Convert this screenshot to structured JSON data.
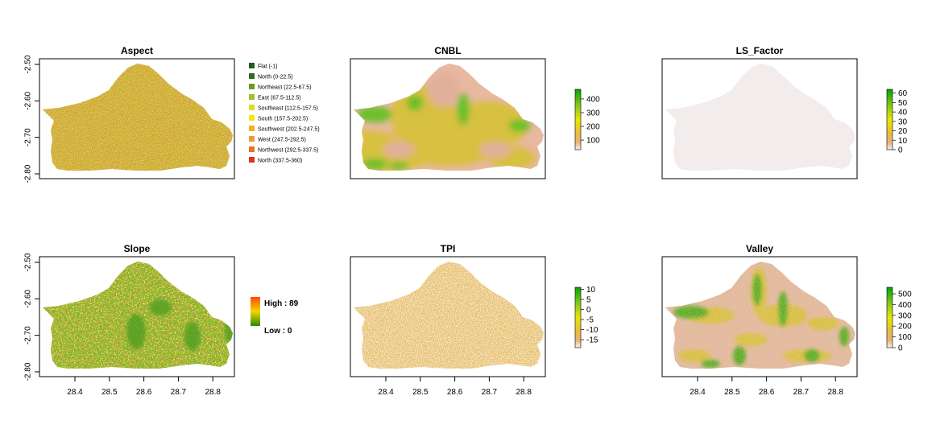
{
  "chart_data": [
    {
      "type": "heatmap",
      "title": "Aspect",
      "ylim": [
        -2.8,
        -2.5
      ],
      "yticks": [
        "-2.50",
        "-2.60",
        "-2.70",
        "-2.80"
      ],
      "legend": {
        "type": "categorical",
        "placement": "right",
        "items": [
          {
            "label": "Flat (-1)",
            "color": "#1b5e20"
          },
          {
            "label": "North (0-22.5)",
            "color": "#33691e"
          },
          {
            "label": "Northeast (22.5-67.5)",
            "color": "#6b9a1f"
          },
          {
            "label": "East (67.5-112.5)",
            "color": "#9fc22a"
          },
          {
            "label": "Southeast (112.5-157.5)",
            "color": "#d9e021"
          },
          {
            "label": "South (157.5-202.5)",
            "color": "#f5e50a"
          },
          {
            "label": "Southwest (202.5-247.5)",
            "color": "#f2b31b"
          },
          {
            "label": "West (247.5-292.5)",
            "color": "#ef9a2e"
          },
          {
            "label": "Northwest (292.5-337.5)",
            "color": "#e8731f"
          },
          {
            "label": "North (337.5-360)",
            "color": "#d9341c"
          }
        ]
      },
      "map_colors": [
        "#d4a020",
        "#c8b528",
        "#d46a1e",
        "#a8b82a",
        "#e0c020"
      ]
    },
    {
      "type": "heatmap",
      "title": "CNBL",
      "colorbar": {
        "ticks": [
          "400",
          "300",
          "200",
          "100"
        ],
        "range": [
          30,
          470
        ],
        "tick_values": [
          400,
          300,
          200,
          100
        ]
      },
      "map_colors": [
        "#e8b8a0",
        "#d8c040",
        "#6cbf2a",
        "#e2b09a"
      ]
    },
    {
      "type": "heatmap",
      "title": "LS_Factor",
      "colorbar": {
        "ticks": [
          "60",
          "50",
          "40",
          "30",
          "20",
          "10",
          "0"
        ],
        "range": [
          0,
          64
        ],
        "tick_values": [
          60,
          50,
          40,
          30,
          20,
          10,
          0
        ]
      },
      "map_colors": [
        "#f3ecec",
        "#d8b060"
      ]
    },
    {
      "type": "heatmap",
      "title": "Slope",
      "ylim": [
        -2.8,
        -2.5
      ],
      "yticks": [
        "-2.50",
        "-2.60",
        "-2.70",
        "-2.80"
      ],
      "xticks": [
        "28.4",
        "28.5",
        "28.6",
        "28.7",
        "28.8"
      ],
      "legend": {
        "type": "continuous",
        "high": "High : 89",
        "low": "Low : 0",
        "colors": [
          "#ff4a00",
          "#f2d400",
          "#2e8b00"
        ]
      },
      "map_colors": [
        "#7ab82a",
        "#d9b020",
        "#d4501c",
        "#4c9e20"
      ]
    },
    {
      "type": "heatmap",
      "title": "TPI",
      "xticks": [
        "28.4",
        "28.5",
        "28.6",
        "28.7",
        "28.8"
      ],
      "colorbar": {
        "ticks": [
          "10",
          "5",
          "0",
          "-5",
          "-10",
          "-15"
        ],
        "range": [
          -19,
          11
        ],
        "tick_values": [
          10,
          5,
          0,
          -5,
          -10,
          -15
        ]
      },
      "map_colors": [
        "#e8c46a",
        "#efc9c2",
        "#d8b85a"
      ]
    },
    {
      "type": "heatmap",
      "title": "Valley",
      "xticks": [
        "28.4",
        "28.5",
        "28.6",
        "28.7",
        "28.8"
      ],
      "colorbar": {
        "ticks": [
          "500",
          "400",
          "300",
          "200",
          "100",
          "0"
        ],
        "range": [
          0,
          560
        ],
        "tick_values": [
          500,
          400,
          300,
          200,
          100,
          0
        ]
      },
      "map_colors": [
        "#e2b89a",
        "#d8c040",
        "#5cad22",
        "#efd0c4"
      ]
    }
  ]
}
